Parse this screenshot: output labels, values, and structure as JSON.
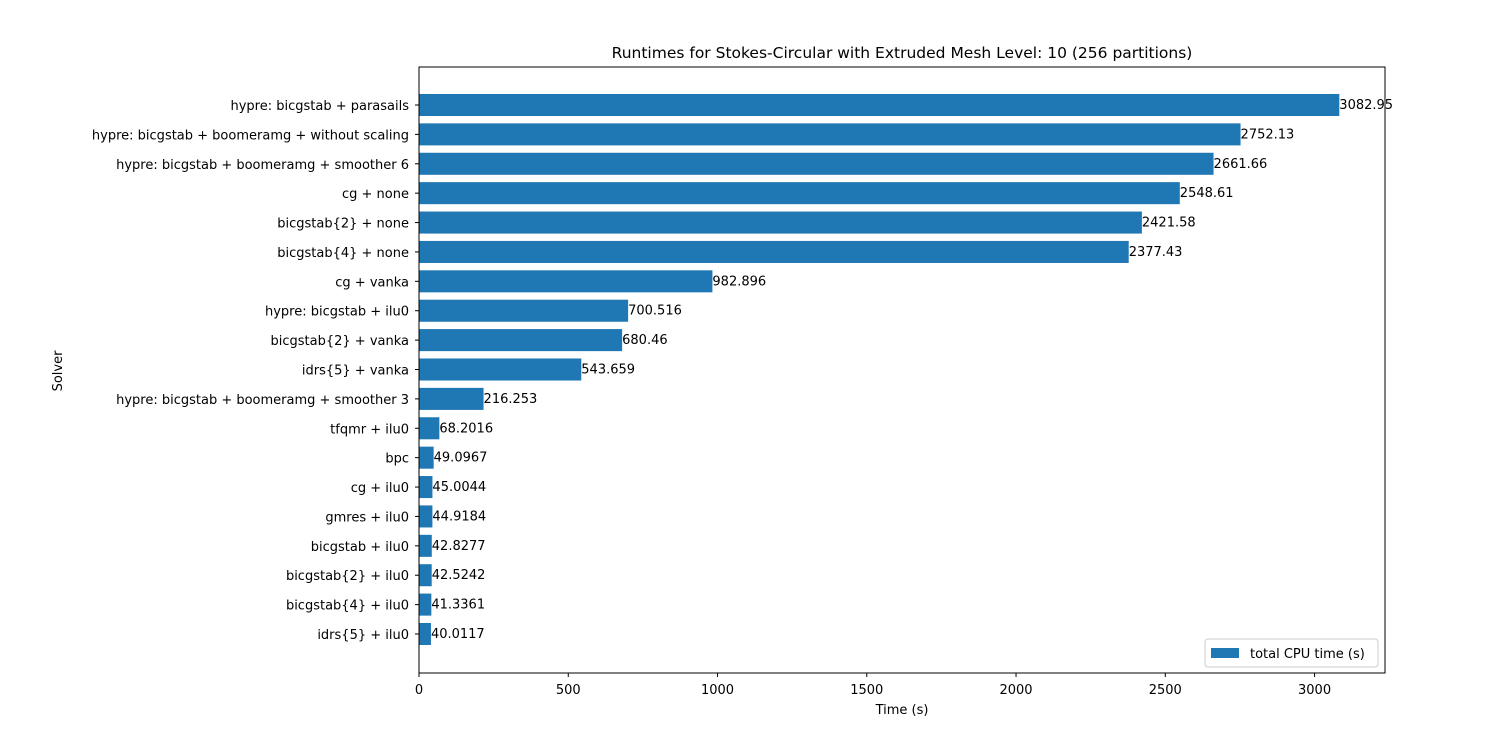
{
  "chart_data": {
    "type": "bar",
    "orientation": "horizontal",
    "title": "Runtimes for Stokes-Circular with Extruded Mesh Level: 10 (256 partitions)",
    "xlabel": "Time (s)",
    "ylabel": "Solver",
    "xlim": [
      0,
      3236
    ],
    "xticks": [
      0,
      500,
      1000,
      1500,
      2000,
      2500,
      3000
    ],
    "grid": false,
    "legend_position": "lower-right",
    "bar_color": "#1f77b4",
    "series": [
      {
        "name": "total CPU time (s)",
        "color": "#1f77b4",
        "categories": [
          "hypre: bicgstab + parasails",
          "hypre: bicgstab + boomeramg + without scaling",
          "hypre: bicgstab + boomeramg + smoother 6",
          "cg + none",
          "bicgstab{2} + none",
          "bicgstab{4} + none",
          "cg + vanka",
          "hypre: bicgstab + ilu0",
          "bicgstab{2} + vanka",
          "idrs{5} + vanka",
          "hypre: bicgstab + boomeramg + smoother 3",
          "tfqmr + ilu0",
          "bpc",
          "cg + ilu0",
          "gmres + ilu0",
          "bicgstab + ilu0",
          "bicgstab{2} + ilu0",
          "bicgstab{4} + ilu0",
          "idrs{5} + ilu0"
        ],
        "values": [
          3082.95,
          2752.13,
          2661.66,
          2548.61,
          2421.58,
          2377.43,
          982.896,
          700.516,
          680.46,
          543.659,
          216.253,
          68.2016,
          49.0967,
          45.0044,
          44.9184,
          42.8277,
          42.5242,
          41.3361,
          40.0117
        ],
        "value_labels": [
          "3082.95",
          "2752.13",
          "2661.66",
          "2548.61",
          "2421.58",
          "2377.43",
          "982.896",
          "700.516",
          "680.46",
          "543.659",
          "216.253",
          "68.2016",
          "49.0967",
          "45.0044",
          "44.9184",
          "42.8277",
          "42.5242",
          "41.3361",
          "40.0117"
        ]
      }
    ]
  }
}
